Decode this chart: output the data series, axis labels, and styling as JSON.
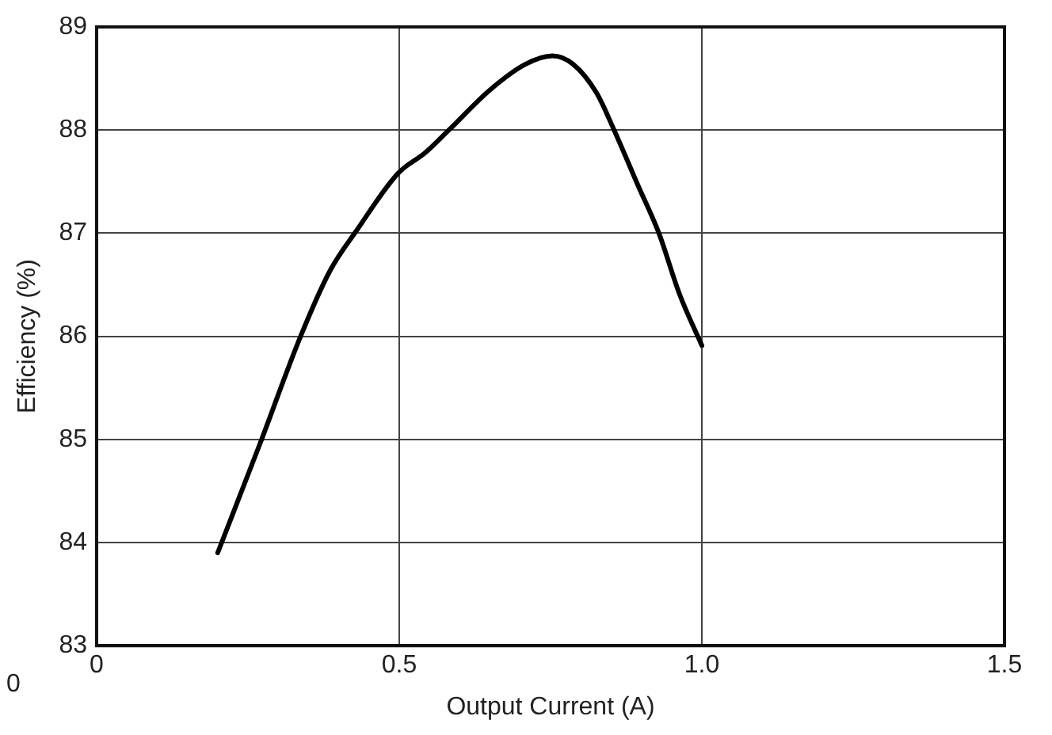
{
  "chart_data": {
    "type": "line",
    "xlabel": "Output Current (A)",
    "ylabel": "Efficiency (%)",
    "xlim": [
      0,
      1.5
    ],
    "xticks": [
      0,
      0.5,
      {
        "value": 1,
        "label": "1.0"
      },
      1.5
    ],
    "ylim": [
      83,
      89
    ],
    "yticks": [
      83,
      84,
      85,
      86,
      87,
      88,
      89
    ],
    "grid": true,
    "marker": "none",
    "line_style": "solid",
    "annotations": [
      "0"
    ],
    "series": [
      {
        "color": "#000000",
        "x": [
          0.2,
          0.27,
          0.337,
          0.386,
          0.43,
          0.498,
          0.543,
          0.582,
          0.65,
          0.709,
          0.753,
          0.787,
          0.826,
          0.855,
          0.894,
          0.929,
          0.963,
          1.0
        ],
        "values": [
          83.9,
          84.96,
          86.0,
          86.64,
          87.03,
          87.58,
          87.78,
          88.0,
          88.39,
          88.64,
          88.72,
          88.64,
          88.36,
          88.0,
          87.47,
          87.0,
          86.41,
          85.91
        ]
      }
    ]
  }
}
